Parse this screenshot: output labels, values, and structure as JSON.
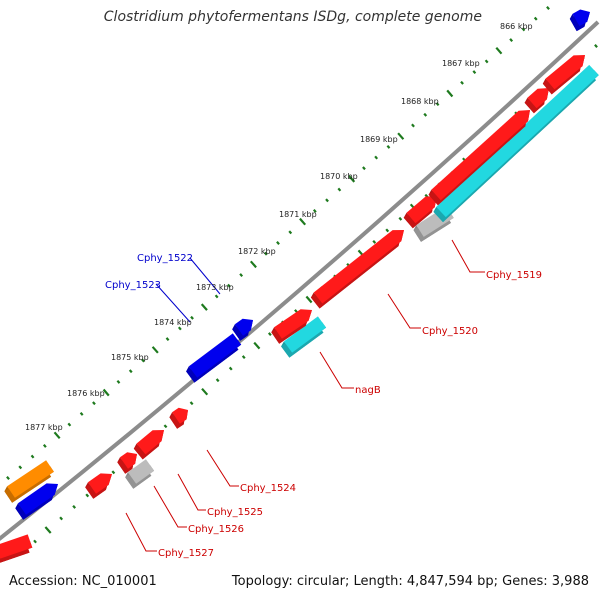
{
  "title": "Clostridium phytofermentans ISDg, complete genome",
  "footer": {
    "accession": "Accession: NC_010001",
    "topology": "Topology: circular; Length: 4,847,594 bp; Genes: 3,988"
  },
  "colors": {
    "backbone": "#8c8c8c",
    "tick": "#1e7a1e",
    "red": "#ff1a1a",
    "blue": "#0000ee",
    "cyan": "#22d8e0",
    "orange": "#ff8c00",
    "gray": "#bcbcbc",
    "label_red": "#cc0000",
    "label_blue": "#0000cc"
  },
  "tick_labels": [
    "866 kbp",
    "1867 kbp",
    "1868 kbp",
    "1869 kbp",
    "1870 kbp",
    "1871 kbp",
    "1872 kbp",
    "1873 kbp",
    "1874 kbp",
    "1875 kbp",
    "1876 kbp",
    "1877 kbp"
  ],
  "gene_labels": [
    {
      "text": "Cphy_1519",
      "color": "red"
    },
    {
      "text": "Cphy_1520",
      "color": "red"
    },
    {
      "text": "nagB",
      "color": "red"
    },
    {
      "text": "Cphy_1522",
      "color": "blue"
    },
    {
      "text": "Cphy_1523",
      "color": "blue"
    },
    {
      "text": "Cphy_1524",
      "color": "red"
    },
    {
      "text": "Cphy_1525",
      "color": "red"
    },
    {
      "text": "Cphy_1526",
      "color": "red"
    },
    {
      "text": "Cphy_1527",
      "color": "red"
    }
  ]
}
